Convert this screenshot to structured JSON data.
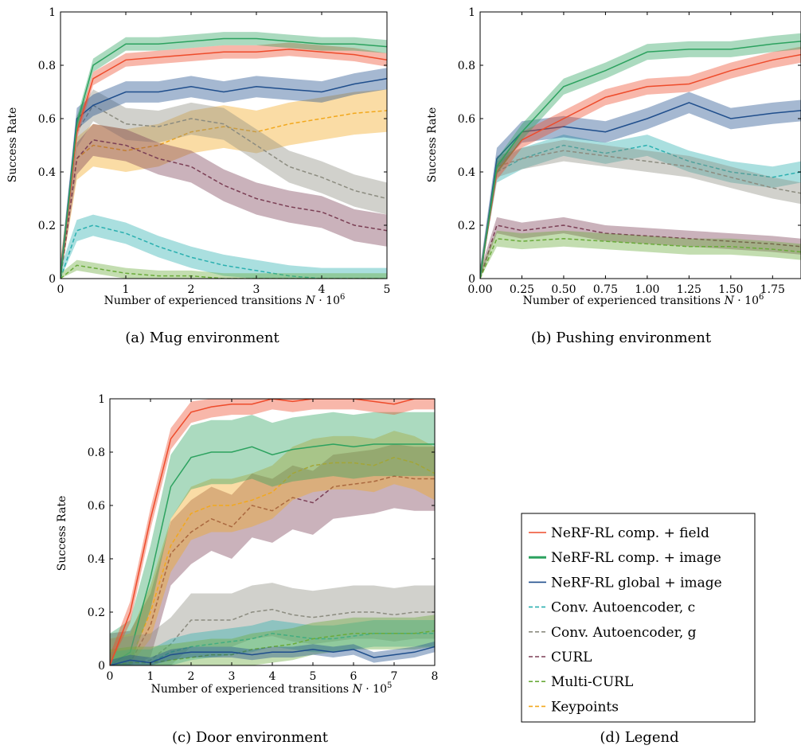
{
  "colors": {
    "nerf_field": "#ee4b2b",
    "nerf_comp_image": "#2ca25f",
    "nerf_global_image": "#1f4e8c",
    "conv_c": "#2ab0b0",
    "conv_g": "#8c8c80",
    "curl": "#7b3f55",
    "multi_curl": "#6aab3a",
    "keypoints": "#f2a81d"
  },
  "legend": {
    "caption": "(d) Legend",
    "entries": [
      {
        "label": "NeRF-RL comp. + field",
        "color_key": "nerf_field",
        "style": "solid"
      },
      {
        "label": "NeRF-RL comp. + image",
        "color_key": "nerf_comp_image",
        "style": "solid-thick"
      },
      {
        "label": "NeRF-RL global + image",
        "color_key": "nerf_global_image",
        "style": "solid"
      },
      {
        "label": "Conv. Autoencoder, c",
        "color_key": "conv_c",
        "style": "dashed"
      },
      {
        "label": "Conv. Autoencoder, g",
        "color_key": "conv_g",
        "style": "dashed"
      },
      {
        "label": "CURL",
        "color_key": "curl",
        "style": "dashed"
      },
      {
        "label": "Multi-CURL",
        "color_key": "multi_curl",
        "style": "dashed"
      },
      {
        "label": "Keypoints",
        "color_key": "keypoints",
        "style": "dashed"
      }
    ]
  },
  "chart_data": [
    {
      "type": "line",
      "caption": "(a) Mug environment",
      "ylabel": "Success Rate",
      "xlabel_text": "Number of experienced transitions ",
      "xlabel_var": "N",
      "xlabel_mult": " · 10",
      "xlabel_exp": "6",
      "xlim": [
        0,
        5
      ],
      "ylim": [
        0,
        1
      ],
      "xticks": [
        0,
        1,
        2,
        3,
        4,
        5
      ],
      "xtick_labels": [
        "0",
        "1",
        "2",
        "3",
        "4",
        "5"
      ],
      "yticks": [
        0,
        0.2,
        0.4,
        0.6,
        0.8,
        1
      ],
      "ytick_labels": [
        "0",
        "0.2",
        "0.4",
        "0.6",
        "0.8",
        "1"
      ],
      "series": [
        {
          "color_key": "keypoints",
          "style": "dashed",
          "band": 0.08,
          "x": [
            0,
            0.25,
            0.5,
            1,
            1.5,
            2,
            2.5,
            3,
            3.5,
            4,
            4.5,
            5
          ],
          "y": [
            0,
            0.45,
            0.5,
            0.48,
            0.5,
            0.55,
            0.57,
            0.55,
            0.58,
            0.6,
            0.62,
            0.63
          ]
        },
        {
          "color_key": "conv_g",
          "style": "dashed",
          "band": 0.06,
          "x": [
            0,
            0.25,
            0.5,
            1,
            1.5,
            2,
            2.5,
            3,
            3.5,
            4,
            4.5,
            5
          ],
          "y": [
            0,
            0.55,
            0.65,
            0.58,
            0.57,
            0.6,
            0.58,
            0.5,
            0.42,
            0.38,
            0.33,
            0.3
          ]
        },
        {
          "color_key": "curl",
          "style": "dashed",
          "band": 0.06,
          "x": [
            0,
            0.25,
            0.5,
            1,
            1.5,
            2,
            2.5,
            3,
            3.5,
            4,
            4.5,
            5
          ],
          "y": [
            0,
            0.45,
            0.52,
            0.5,
            0.45,
            0.42,
            0.35,
            0.3,
            0.27,
            0.25,
            0.2,
            0.18
          ]
        },
        {
          "color_key": "conv_c",
          "style": "dashed",
          "band": 0.04,
          "x": [
            0,
            0.25,
            0.5,
            1,
            1.5,
            2,
            2.5,
            3,
            3.5,
            4,
            4.5,
            5
          ],
          "y": [
            0,
            0.18,
            0.2,
            0.17,
            0.12,
            0.08,
            0.05,
            0.03,
            0.01,
            0,
            0,
            0
          ]
        },
        {
          "color_key": "multi_curl",
          "style": "dashed",
          "band": 0.02,
          "x": [
            0,
            0.25,
            0.5,
            1,
            1.5,
            2,
            2.5,
            3,
            3.5,
            4,
            4.5,
            5
          ],
          "y": [
            0,
            0.05,
            0.04,
            0.02,
            0.01,
            0.01,
            0,
            0,
            0,
            0,
            0,
            0
          ]
        },
        {
          "color_key": "nerf_global_image",
          "style": "solid",
          "band": 0.04,
          "x": [
            0,
            0.25,
            0.5,
            1,
            1.5,
            2,
            2.5,
            3,
            3.5,
            4,
            4.5,
            5
          ],
          "y": [
            0,
            0.6,
            0.65,
            0.7,
            0.7,
            0.72,
            0.7,
            0.72,
            0.71,
            0.7,
            0.73,
            0.75
          ]
        },
        {
          "color_key": "nerf_field",
          "style": "solid",
          "band": 0.025,
          "x": [
            0,
            0.25,
            0.5,
            1,
            1.5,
            2,
            2.5,
            3,
            3.5,
            4,
            4.5,
            5
          ],
          "y": [
            0,
            0.55,
            0.75,
            0.82,
            0.83,
            0.84,
            0.85,
            0.85,
            0.86,
            0.85,
            0.84,
            0.82
          ]
        },
        {
          "color_key": "nerf_comp_image",
          "style": "solid",
          "band": 0.025,
          "x": [
            0,
            0.25,
            0.5,
            1,
            1.5,
            2,
            2.5,
            3,
            3.5,
            4,
            4.5,
            5
          ],
          "y": [
            0,
            0.58,
            0.8,
            0.88,
            0.88,
            0.89,
            0.9,
            0.9,
            0.89,
            0.88,
            0.88,
            0.87
          ]
        }
      ]
    },
    {
      "type": "line",
      "caption": "(b) Pushing environment",
      "ylabel": "Success Rate",
      "xlabel_text": "Number of experienced transitions ",
      "xlabel_var": "N",
      "xlabel_mult": " · 10",
      "xlabel_exp": "6",
      "xlim": [
        0,
        1.92
      ],
      "ylim": [
        0,
        1
      ],
      "xticks": [
        0,
        0.25,
        0.5,
        0.75,
        1,
        1.25,
        1.5,
        1.75
      ],
      "xtick_labels": [
        "0.00",
        "0.25",
        "0.50",
        "0.75",
        "1.00",
        "1.25",
        "1.50",
        "1.75"
      ],
      "yticks": [
        0,
        0.2,
        0.4,
        0.6,
        0.8,
        1
      ],
      "ytick_labels": [
        "0",
        "0.2",
        "0.4",
        "0.6",
        "0.8",
        "1"
      ],
      "series": [
        {
          "color_key": "conv_c",
          "style": "dashed",
          "band": 0.04,
          "x": [
            0,
            0.1,
            0.25,
            0.5,
            0.75,
            1,
            1.25,
            1.5,
            1.75,
            1.92
          ],
          "y": [
            0,
            0.4,
            0.45,
            0.5,
            0.47,
            0.5,
            0.44,
            0.4,
            0.38,
            0.4
          ]
        },
        {
          "color_key": "conv_g",
          "style": "dashed",
          "band": 0.04,
          "x": [
            0,
            0.1,
            0.25,
            0.5,
            0.75,
            1,
            1.25,
            1.5,
            1.75,
            1.92
          ],
          "y": [
            0,
            0.42,
            0.45,
            0.48,
            0.46,
            0.44,
            0.42,
            0.38,
            0.34,
            0.32
          ]
        },
        {
          "color_key": "curl",
          "style": "dashed",
          "band": 0.03,
          "x": [
            0,
            0.1,
            0.25,
            0.5,
            0.75,
            1,
            1.25,
            1.5,
            1.75,
            1.92
          ],
          "y": [
            0,
            0.2,
            0.18,
            0.2,
            0.17,
            0.16,
            0.15,
            0.14,
            0.13,
            0.12
          ]
        },
        {
          "color_key": "multi_curl",
          "style": "dashed",
          "band": 0.03,
          "x": [
            0,
            0.1,
            0.25,
            0.5,
            0.75,
            1,
            1.25,
            1.5,
            1.75,
            1.92
          ],
          "y": [
            0,
            0.15,
            0.14,
            0.15,
            0.14,
            0.13,
            0.12,
            0.12,
            0.11,
            0.1
          ]
        },
        {
          "color_key": "nerf_global_image",
          "style": "solid",
          "band": 0.04,
          "x": [
            0,
            0.1,
            0.25,
            0.5,
            0.75,
            1,
            1.25,
            1.5,
            1.75,
            1.92
          ],
          "y": [
            0,
            0.45,
            0.55,
            0.57,
            0.55,
            0.6,
            0.66,
            0.6,
            0.62,
            0.63
          ]
        },
        {
          "color_key": "nerf_field",
          "style": "solid",
          "band": 0.03,
          "x": [
            0,
            0.1,
            0.25,
            0.5,
            0.75,
            1,
            1.25,
            1.5,
            1.75,
            1.92
          ],
          "y": [
            0,
            0.4,
            0.52,
            0.6,
            0.68,
            0.72,
            0.73,
            0.78,
            0.82,
            0.84
          ]
        },
        {
          "color_key": "nerf_comp_image",
          "style": "solid",
          "band": 0.03,
          "x": [
            0,
            0.1,
            0.25,
            0.5,
            0.75,
            1,
            1.25,
            1.5,
            1.75,
            1.92
          ],
          "y": [
            0,
            0.42,
            0.55,
            0.72,
            0.78,
            0.85,
            0.86,
            0.86,
            0.88,
            0.89
          ]
        }
      ]
    },
    {
      "type": "line",
      "caption": "(c) Door environment",
      "ylabel": "Success Rate",
      "xlabel_text": "Number of experienced transitions ",
      "xlabel_var": "N",
      "xlabel_mult": " · 10",
      "xlabel_exp": "5",
      "xlim": [
        0,
        8
      ],
      "ylim": [
        0,
        1
      ],
      "xticks": [
        0,
        1,
        2,
        3,
        4,
        5,
        6,
        7,
        8
      ],
      "xtick_labels": [
        "0",
        "1",
        "2",
        "3",
        "4",
        "5",
        "6",
        "7",
        "8"
      ],
      "yticks": [
        0,
        0.2,
        0.4,
        0.6,
        0.8,
        1
      ],
      "ytick_labels": [
        "0",
        "0.2",
        "0.4",
        "0.6",
        "0.8",
        "1"
      ],
      "series": [
        {
          "color_key": "curl",
          "style": "dashed",
          "band": 0.12,
          "x": [
            0,
            0.5,
            1,
            1.5,
            2,
            2.5,
            3,
            3.5,
            4,
            4.5,
            5,
            5.5,
            6,
            6.5,
            7,
            7.5,
            8
          ],
          "y": [
            0,
            0.01,
            0.15,
            0.42,
            0.5,
            0.55,
            0.52,
            0.6,
            0.58,
            0.63,
            0.61,
            0.67,
            0.68,
            0.69,
            0.71,
            0.7,
            0.7
          ]
        },
        {
          "color_key": "keypoints",
          "style": "dashed",
          "band": 0.1,
          "x": [
            0,
            0.5,
            1,
            1.5,
            2,
            2.5,
            3,
            3.5,
            4,
            4.5,
            5,
            5.5,
            6,
            6.5,
            7,
            7.5,
            8
          ],
          "y": [
            0,
            0.02,
            0.2,
            0.45,
            0.57,
            0.6,
            0.6,
            0.62,
            0.65,
            0.72,
            0.75,
            0.76,
            0.76,
            0.75,
            0.78,
            0.76,
            0.72
          ]
        },
        {
          "color_key": "nerf_comp_image",
          "style": "solid",
          "band": 0.12,
          "x": [
            0,
            0.5,
            1,
            1.5,
            2,
            2.5,
            3,
            3.5,
            4,
            4.5,
            5,
            5.5,
            6,
            6.5,
            7,
            7.5,
            8
          ],
          "y": [
            0,
            0.05,
            0.33,
            0.67,
            0.78,
            0.8,
            0.8,
            0.82,
            0.79,
            0.81,
            0.82,
            0.83,
            0.82,
            0.83,
            0.83,
            0.83,
            0.83
          ]
        },
        {
          "color_key": "conv_g",
          "style": "dashed",
          "band": 0.1,
          "x": [
            0,
            0.5,
            1,
            1.5,
            2,
            2.5,
            3,
            3.5,
            4,
            4.5,
            5,
            5.5,
            6,
            6.5,
            7,
            7.5,
            8
          ],
          "y": [
            0,
            0.01,
            0.02,
            0.08,
            0.17,
            0.17,
            0.17,
            0.2,
            0.21,
            0.19,
            0.18,
            0.19,
            0.2,
            0.2,
            0.19,
            0.2,
            0.2
          ]
        },
        {
          "color_key": "conv_c",
          "style": "dashed",
          "band": 0.05,
          "x": [
            0,
            0.5,
            1,
            1.5,
            2,
            2.5,
            3,
            3.5,
            4,
            4.5,
            5,
            5.5,
            6,
            6.5,
            7,
            7.5,
            8
          ],
          "y": [
            0,
            0.01,
            0.01,
            0.05,
            0.07,
            0.08,
            0.09,
            0.1,
            0.12,
            0.11,
            0.1,
            0.1,
            0.11,
            0.12,
            0.12,
            0.12,
            0.12
          ]
        },
        {
          "color_key": "multi_curl",
          "style": "dashed",
          "band": 0.06,
          "x": [
            0,
            0.5,
            1,
            1.5,
            2,
            2.5,
            3,
            3.5,
            4,
            4.5,
            5,
            5.5,
            6,
            6.5,
            7,
            7.5,
            8
          ],
          "y": [
            0,
            0.01,
            0.01,
            0.02,
            0.03,
            0.04,
            0.04,
            0.06,
            0.07,
            0.08,
            0.1,
            0.11,
            0.12,
            0.12,
            0.12,
            0.12,
            0.13
          ]
        },
        {
          "color_key": "nerf_global_image",
          "style": "solid",
          "band": 0.02,
          "x": [
            0,
            0.5,
            1,
            1.5,
            2,
            2.5,
            3,
            3.5,
            4,
            4.5,
            5,
            5.5,
            6,
            6.5,
            7,
            7.5,
            8
          ],
          "y": [
            0,
            0.02,
            0.01,
            0.04,
            0.05,
            0.05,
            0.05,
            0.04,
            0.05,
            0.05,
            0.06,
            0.05,
            0.06,
            0.03,
            0.04,
            0.05,
            0.07
          ]
        },
        {
          "color_key": "nerf_field",
          "style": "solid",
          "band": 0.04,
          "x": [
            0,
            0.5,
            1,
            1.5,
            2,
            2.5,
            3,
            3.5,
            4,
            4.5,
            5,
            5.5,
            6,
            6.5,
            7,
            7.5,
            8
          ],
          "y": [
            0,
            0.2,
            0.55,
            0.85,
            0.95,
            0.97,
            0.98,
            0.98,
            1,
            0.99,
            1,
            1,
            1,
            0.99,
            0.98,
            1,
            1
          ]
        }
      ]
    }
  ]
}
